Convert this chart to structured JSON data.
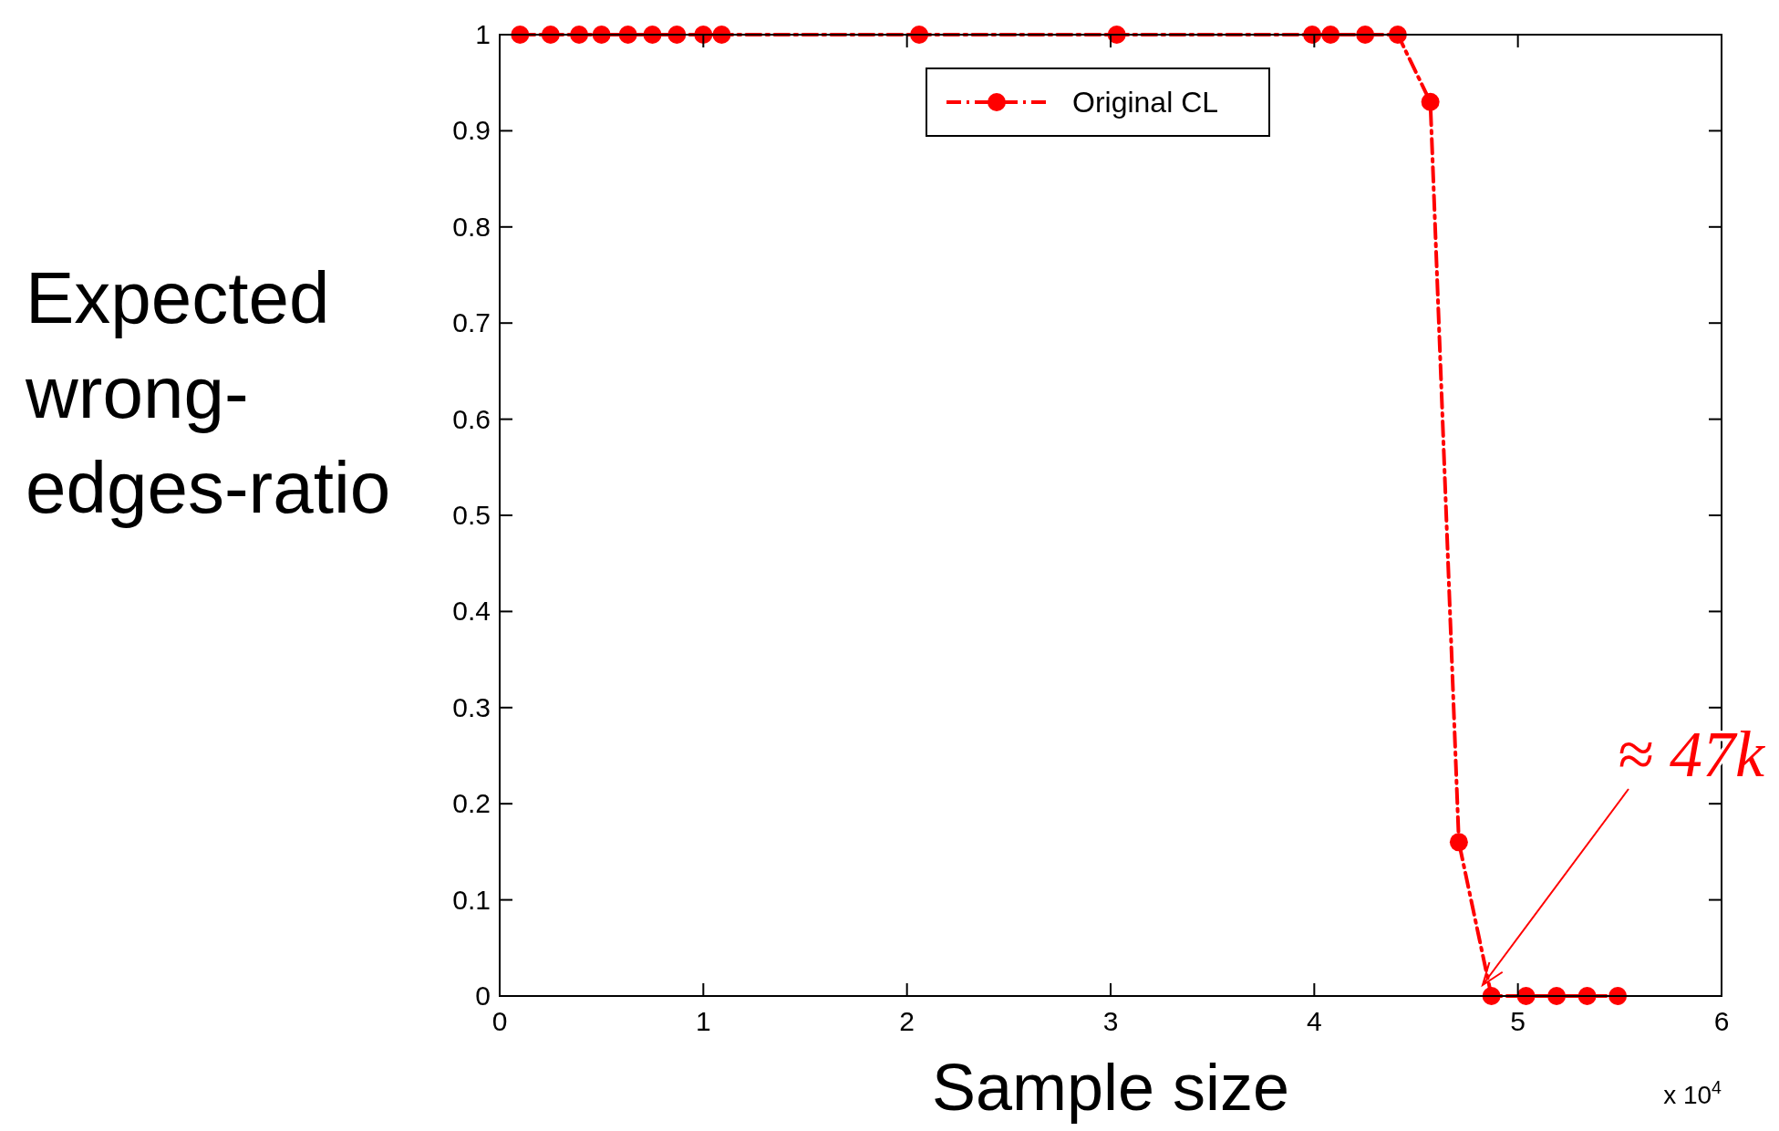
{
  "chart_data": {
    "type": "line",
    "xlabel": "Sample size",
    "ylabel": "Expected wrong-edges-ratio",
    "x": [
      0.1,
      0.25,
      0.39,
      0.5,
      0.63,
      0.75,
      0.87,
      1,
      1.09,
      2.06,
      3.03,
      3.99,
      4.08,
      4.25,
      4.41,
      4.57,
      4.71,
      4.87,
      5.04,
      5.19,
      5.34,
      5.49
    ],
    "series": [
      {
        "name": "Original CL",
        "color": "#ff0000",
        "values": [
          1,
          1,
          1,
          1,
          1,
          1,
          1,
          1,
          1,
          1,
          1,
          1,
          1,
          1,
          1,
          0.93,
          0.16,
          0,
          0,
          0,
          0,
          0
        ]
      }
    ],
    "xlim": [
      0,
      6
    ],
    "xticks": [
      0,
      1,
      2,
      3,
      4,
      5,
      6
    ],
    "ylim": [
      0,
      1
    ],
    "yticks": [
      0,
      0.1,
      0.2,
      0.3,
      0.4,
      0.5,
      0.6,
      0.7,
      0.8,
      0.9,
      1
    ],
    "grid": false,
    "legend": "top",
    "marker": "circle",
    "line_style": "dashed",
    "annotations": [
      "≈ 47k",
      "x 10$^{4}$"
    ]
  }
}
